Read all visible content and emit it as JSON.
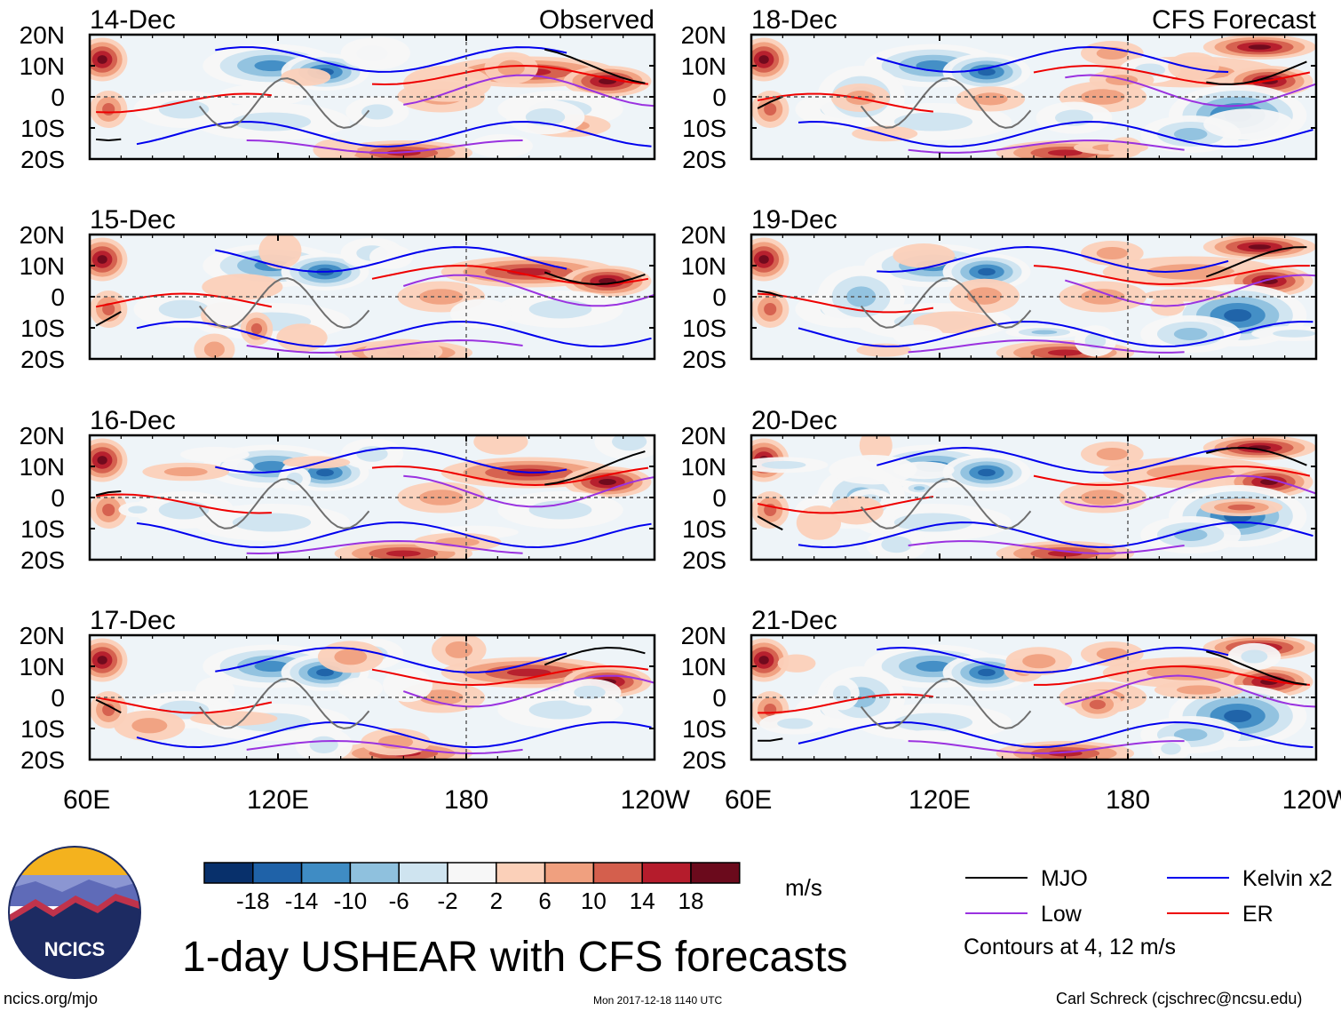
{
  "chart_data": {
    "type": "heatmap",
    "title": "1-day USHEAR with CFS forecasts",
    "columns": [
      {
        "label": "Observed",
        "panels": [
          "14-Dec",
          "15-Dec",
          "16-Dec",
          "17-Dec"
        ]
      },
      {
        "label": "CFS Forecast",
        "panels": [
          "18-Dec",
          "19-Dec",
          "20-Dec",
          "21-Dec"
        ]
      }
    ],
    "x_ticks": [
      "60E",
      "120E",
      "180",
      "120W"
    ],
    "x_tick_values": [
      60,
      120,
      180,
      240
    ],
    "xlim": [
      60,
      240
    ],
    "y_ticks": [
      "20N",
      "10N",
      "0",
      "10S",
      "20S"
    ],
    "y_tick_values": [
      20,
      10,
      0,
      -10,
      -20
    ],
    "ylim": [
      -20,
      20
    ],
    "colorbar": {
      "units": "m/s",
      "tick_labels": [
        "-18",
        "-14",
        "-10",
        "-6",
        "-2",
        "2",
        "6",
        "10",
        "14",
        "18"
      ],
      "levels": [
        -18,
        -14,
        -10,
        -6,
        -2,
        2,
        6,
        10,
        14,
        18
      ],
      "colors": [
        "#08306b",
        "#1f62a8",
        "#3f8cc4",
        "#8fc1de",
        "#cfe4f0",
        "#f7f7f7",
        "#fbd0b9",
        "#f0a07f",
        "#d45f4d",
        "#b51c2c",
        "#6b0a1c"
      ]
    },
    "legend": {
      "items": [
        {
          "label": "MJO",
          "color": "#000000"
        },
        {
          "label": "Kelvin x2",
          "color": "#0000ee"
        },
        {
          "label": "Low",
          "color": "#9a32e0"
        },
        {
          "label": "ER",
          "color": "#ee0000"
        }
      ],
      "note": "Contours at 4, 12 m/s"
    }
  },
  "footer": {
    "logo_text": "NCICS",
    "site": "ncics.org/mjo",
    "timestamp": "Mon 2017-12-18 1140 UTC",
    "credit": "Carl Schreck (cjschrec@ncsu.edu)"
  }
}
